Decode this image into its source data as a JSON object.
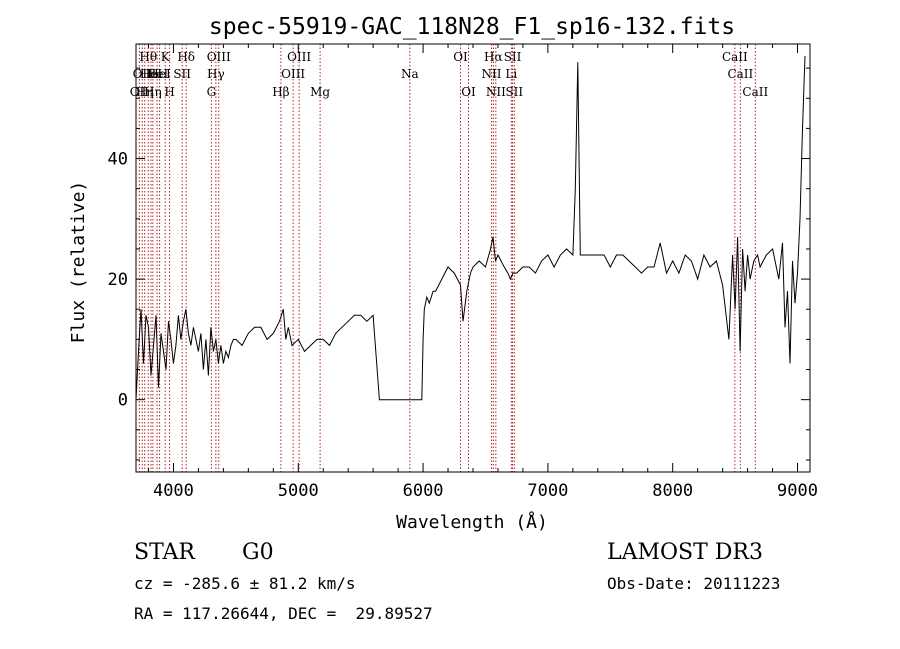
{
  "chart_data": {
    "type": "line",
    "title": "spec-55919-GAC_118N28_F1_sp16-132.fits",
    "xlabel": "Wavelength (Å)",
    "ylabel": "Flux (relative)",
    "xlim": [
      3700,
      9100
    ],
    "ylim": [
      -12,
      59
    ],
    "xticks": [
      4000,
      5000,
      6000,
      7000,
      8000,
      9000
    ],
    "yticks": [
      0,
      20,
      40
    ],
    "line_color": "#000000",
    "marker_color": "#b22222",
    "series": [
      {
        "x": [
          3700,
          3720,
          3740,
          3760,
          3780,
          3800,
          3820,
          3840,
          3860,
          3880,
          3900,
          3920,
          3940,
          3960,
          3980,
          4000,
          4020,
          4040,
          4060,
          4080,
          4100,
          4120,
          4140,
          4160,
          4180,
          4200,
          4220,
          4240,
          4260,
          4280,
          4300,
          4320,
          4340,
          4360,
          4380,
          4400,
          4420,
          4440,
          4460,
          4480,
          4500,
          4550,
          4600,
          4650,
          4700,
          4750,
          4800,
          4850,
          4880,
          4900,
          4920,
          4950,
          5000,
          5050,
          5100,
          5150,
          5200,
          5250,
          5300,
          5350,
          5400,
          5450,
          5500,
          5550,
          5600,
          5650,
          5660,
          5670,
          5680,
          5700,
          5800,
          5900,
          5990,
          6000,
          6010,
          6030,
          6050,
          6080,
          6100,
          6150,
          6200,
          6250,
          6300,
          6320,
          6350,
          6380,
          6400,
          6450,
          6500,
          6540,
          6560,
          6580,
          6600,
          6650,
          6680,
          6700,
          6720,
          6750,
          6800,
          6850,
          6900,
          6950,
          7000,
          7050,
          7100,
          7150,
          7200,
          7220,
          7240,
          7260,
          7300,
          7350,
          7400,
          7450,
          7500,
          7550,
          7600,
          7650,
          7700,
          7750,
          7800,
          7850,
          7900,
          7950,
          8000,
          8050,
          8100,
          8150,
          8200,
          8250,
          8300,
          8350,
          8400,
          8450,
          8480,
          8500,
          8520,
          8540,
          8560,
          8580,
          8600,
          8620,
          8650,
          8680,
          8700,
          8750,
          8800,
          8850,
          8880,
          8900,
          8920,
          8940,
          8960,
          8980,
          9000,
          9020,
          9040,
          9060
        ],
        "y": [
          0,
          8,
          15,
          6,
          14,
          12,
          4,
          9,
          14,
          2,
          11,
          8,
          5,
          13,
          10,
          6,
          9,
          14,
          10,
          13,
          15,
          11,
          9,
          12,
          10,
          8,
          11,
          5,
          10,
          4,
          12,
          8,
          10,
          6,
          9,
          6,
          8,
          7,
          9,
          10,
          10,
          9,
          11,
          12,
          12,
          10,
          11,
          13,
          15,
          10,
          12,
          9,
          10,
          8,
          9,
          10,
          10,
          9,
          11,
          12,
          13,
          14,
          14,
          13,
          14,
          0,
          0,
          0,
          0,
          0,
          0,
          0,
          0,
          10,
          15,
          17,
          16,
          18,
          18,
          20,
          22,
          21,
          19,
          13,
          18,
          21,
          22,
          23,
          22,
          25,
          27,
          23,
          24,
          22,
          21,
          20,
          21,
          21,
          22,
          22,
          21,
          23,
          24,
          22,
          24,
          25,
          24,
          35,
          56,
          24,
          24,
          24,
          24,
          24,
          22,
          24,
          24,
          23,
          22,
          21,
          22,
          22,
          26,
          21,
          23,
          21,
          24,
          23,
          20,
          24,
          22,
          23,
          19,
          10,
          24,
          15,
          27,
          8,
          25,
          18,
          24,
          20,
          23,
          24,
          22,
          24,
          25,
          20,
          26,
          12,
          18,
          6,
          23,
          16,
          21,
          30,
          45,
          57
        ]
      }
    ],
    "lines": [
      {
        "w": 3727,
        "label": "OII",
        "row": 2
      },
      {
        "w": 3750,
        "label": "OII",
        "row": 1
      },
      {
        "w": 3770,
        "label": "Hη",
        "row": 2
      },
      {
        "w": 3798,
        "label": "Hθ",
        "row": 0
      },
      {
        "w": 3820,
        "label": "HeI",
        "row": 1
      },
      {
        "w": 3835,
        "label": "Hη",
        "row": 2
      },
      {
        "w": 3869,
        "label": "HeI",
        "row": 1
      },
      {
        "w": 3889,
        "label": "HeI",
        "row": 1
      },
      {
        "w": 3934,
        "label": "K",
        "row": 0
      },
      {
        "w": 3969,
        "label": "H",
        "row": 2
      },
      {
        "w": 4070,
        "label": "SII",
        "row": 1
      },
      {
        "w": 4102,
        "label": "Hδ",
        "row": 0
      },
      {
        "w": 4304,
        "label": "G",
        "row": 2
      },
      {
        "w": 4340,
        "label": "Hγ",
        "row": 1
      },
      {
        "w": 4363,
        "label": "OIII",
        "row": 0
      },
      {
        "w": 4861,
        "label": "Hβ",
        "row": 2
      },
      {
        "w": 4959,
        "label": "OIII",
        "row": 1
      },
      {
        "w": 5007,
        "label": "OIII",
        "row": 0
      },
      {
        "w": 5175,
        "label": "Mg",
        "row": 2
      },
      {
        "w": 5894,
        "label": "Na",
        "row": 1
      },
      {
        "w": 6300,
        "label": "OI",
        "row": 0
      },
      {
        "w": 6364,
        "label": "OI",
        "row": 2
      },
      {
        "w": 6548,
        "label": "NII",
        "row": 1
      },
      {
        "w": 6563,
        "label": "Hα",
        "row": 0
      },
      {
        "w": 6583,
        "label": "NII",
        "row": 2
      },
      {
        "w": 6707,
        "label": "Li",
        "row": 1
      },
      {
        "w": 6717,
        "label": "SII",
        "row": 0
      },
      {
        "w": 6731,
        "label": "SII",
        "row": 2
      },
      {
        "w": 8498,
        "label": "CaII",
        "row": 0
      },
      {
        "w": 8542,
        "label": "CaII",
        "row": 1
      },
      {
        "w": 8662,
        "label": "CaII",
        "row": 2
      }
    ]
  },
  "info": {
    "obj_type": "STAR",
    "subclass": "G0",
    "survey": "LAMOST DR3",
    "cz": "cz = -285.6 ± 81.2 km/s",
    "obs_date": "Obs-Date: 20111223",
    "radec": "RA = 117.26644, DEC =  29.89527"
  }
}
